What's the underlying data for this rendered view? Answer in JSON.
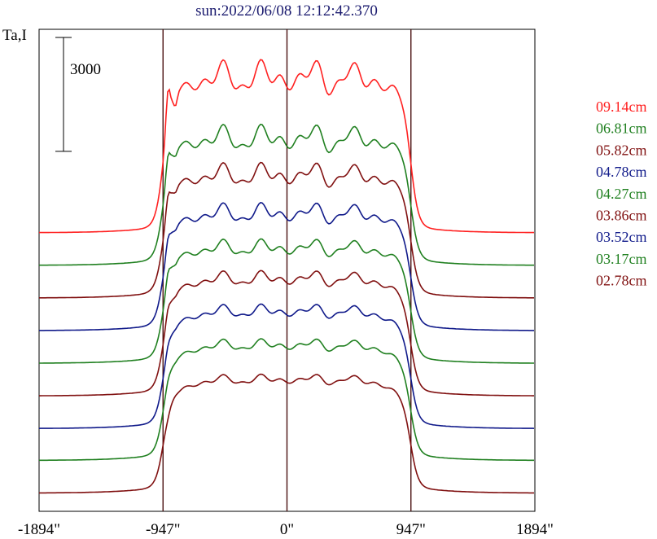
{
  "chart_data": {
    "type": "line",
    "title": "sun:2022/06/08 12:12:42.370",
    "ylabel": "Ta,I",
    "scale_bar_label": "3000",
    "scale_bar_value": 3000,
    "xlim": [
      -1894,
      1894
    ],
    "x_ticks": [
      {
        "value": -1894,
        "label": "-1894\""
      },
      {
        "value": -947,
        "label": "-947\""
      },
      {
        "value": 0,
        "label": "0\""
      },
      {
        "value": 947,
        "label": "947\""
      },
      {
        "value": 1894,
        "label": "1894\""
      }
    ],
    "vertical_lines": [
      -947,
      0,
      947
    ],
    "grid": false,
    "legend_position": "right",
    "series": [
      {
        "name": "09.14cm",
        "color": "#ff2020",
        "offset": 6640,
        "peak": 5200,
        "plateau": 4050,
        "edge": 3400,
        "bumps": 1.0
      },
      {
        "name": "06.81cm",
        "color": "#208020",
        "offset": 5780,
        "peak": 3900,
        "plateau": 3300,
        "edge": 2900,
        "bumps": 0.8
      },
      {
        "name": "05.82cm",
        "color": "#801010",
        "offset": 4920,
        "peak": 3700,
        "plateau": 3200,
        "edge": 2750,
        "bumps": 0.7
      },
      {
        "name": "04.78cm",
        "color": "#101a8a",
        "offset": 4060,
        "peak": 3400,
        "plateau": 3050,
        "edge": 2550,
        "bumps": 0.6
      },
      {
        "name": "04.27cm",
        "color": "#208020",
        "offset": 3200,
        "peak": 3350,
        "plateau": 3000,
        "edge": 2500,
        "bumps": 0.5
      },
      {
        "name": "03.86cm",
        "color": "#801010",
        "offset": 2340,
        "peak": 3300,
        "plateau": 3050,
        "edge": 2450,
        "bumps": 0.45
      },
      {
        "name": "03.52cm",
        "color": "#101a8a",
        "offset": 1480,
        "peak": 3200,
        "plateau": 3050,
        "edge": 2400,
        "bumps": 0.4
      },
      {
        "name": "03.17cm",
        "color": "#208020",
        "offset": 640,
        "peak": 3100,
        "plateau": 3000,
        "edge": 2350,
        "bumps": 0.35
      },
      {
        "name": "02.78cm",
        "color": "#801010",
        "offset": -220,
        "peak": 2900,
        "plateau": 2950,
        "edge": 2300,
        "bumps": 0.3
      }
    ]
  }
}
